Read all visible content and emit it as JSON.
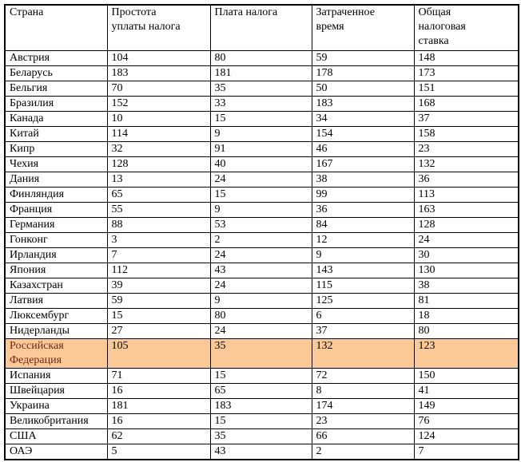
{
  "chart_data": {
    "type": "table",
    "title": "",
    "columns": [
      "Страна",
      "Простота уплаты налога",
      "Плата налога",
      "Затраченное время",
      "Общая налоговая ставка"
    ],
    "rows": [
      [
        "Австрия",
        104,
        80,
        59,
        148
      ],
      [
        "Беларусь",
        183,
        181,
        178,
        173
      ],
      [
        "Бельгия",
        70,
        35,
        50,
        151
      ],
      [
        "Бразилия",
        152,
        33,
        183,
        168
      ],
      [
        "Канада",
        10,
        15,
        34,
        37
      ],
      [
        "Китай",
        114,
        9,
        154,
        158
      ],
      [
        "Кипр",
        32,
        91,
        46,
        23
      ],
      [
        "Чехия",
        128,
        40,
        167,
        132
      ],
      [
        "Дания",
        13,
        24,
        38,
        36
      ],
      [
        "Финляндия",
        65,
        15,
        99,
        113
      ],
      [
        "Франция",
        55,
        9,
        36,
        163
      ],
      [
        "Германия",
        88,
        53,
        84,
        128
      ],
      [
        "Гонконг",
        3,
        2,
        12,
        24
      ],
      [
        "Ирландия",
        7,
        24,
        9,
        30
      ],
      [
        "Япония",
        112,
        43,
        143,
        130
      ],
      [
        "Казахстран",
        39,
        24,
        115,
        38
      ],
      [
        "Латвия",
        59,
        9,
        125,
        81
      ],
      [
        "Люксембург",
        15,
        80,
        6,
        18
      ],
      [
        "Нидерланды",
        27,
        24,
        37,
        80
      ],
      [
        "Российская Федерация",
        105,
        35,
        132,
        123
      ],
      [
        "Испания",
        71,
        15,
        72,
        150
      ],
      [
        "Швейцария",
        16,
        65,
        8,
        41
      ],
      [
        "Украина",
        181,
        183,
        174,
        149
      ],
      [
        "Великобритания",
        16,
        15,
        23,
        76
      ],
      [
        "США",
        62,
        35,
        66,
        124
      ],
      [
        "ОАЭ",
        5,
        43,
        2,
        7
      ]
    ],
    "highlighted_row": "Российская Федерация"
  },
  "table": {
    "header_display": {
      "col0": "Страна",
      "col1": "Простота\nуплаты налога",
      "col2": "Плата налога",
      "col3": "Затраченное\nвремя",
      "col4": "Общая\nналоговая\nставка"
    }
  },
  "colors": {
    "highlight_bg": "#FBC998",
    "highlight_text": "#6B2817",
    "border": "#000000",
    "text": "#000000"
  }
}
